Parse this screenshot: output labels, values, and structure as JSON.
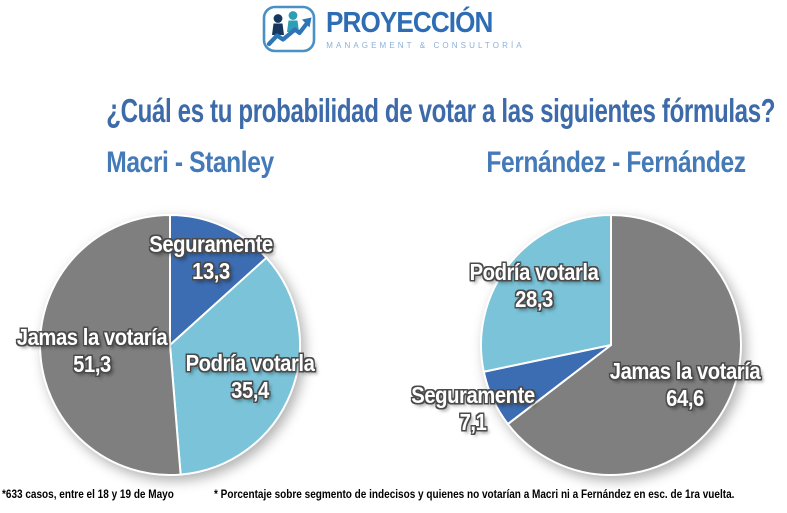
{
  "logo": {
    "brand": "PROYECCIÓN",
    "tagline": "MANAGEMENT  &  CONSULTORÍA",
    "icon": "people-growth-arrow-icon",
    "colors": {
      "brand_blue": "#2e6db4",
      "tagline_blue": "#8ab0d8",
      "person_dark": "#17375e",
      "person_teal": "#2f9db5",
      "arrow_blue": "#2e75b6",
      "border_blue": "#4a90c4"
    }
  },
  "title": "¿Cuál es tu probabilidad de votar a las siguientes fórmulas?",
  "title_color": "#3d6aa8",
  "footnotes": {
    "left": "*633 casos, entre el 18 y 19 de Mayo",
    "right": "* Porcentaje sobre segmento de indecisos y quienes no votarían a Macri ni a Fernández en esc. de 1ra vuelta."
  },
  "chart_data": [
    {
      "type": "pie",
      "title": "Macri - Stanley",
      "start_angle_deg": 0,
      "direction": "clockwise",
      "slices": [
        {
          "label": "Seguramente",
          "value": 13.3,
          "display": "13,3",
          "color": "#3c6cb2"
        },
        {
          "label": "Podría votarla",
          "value": 35.4,
          "display": "35,4",
          "color": "#7ac3d8"
        },
        {
          "label": "Jamas la votaría",
          "value": 51.3,
          "display": "51,3",
          "color": "#7f7f7f"
        }
      ]
    },
    {
      "type": "pie",
      "title": "Fernández - Fernández",
      "start_angle_deg": 0,
      "direction": "clockwise",
      "slices": [
        {
          "label": "Jamas la votaría",
          "value": 64.6,
          "display": "64,6",
          "color": "#7f7f7f"
        },
        {
          "label": "Seguramente",
          "value": 7.1,
          "display": "7,1",
          "color": "#3c6cb2"
        },
        {
          "label": "Podría votarla",
          "value": 28.3,
          "display": "28,3",
          "color": "#7ac3d8"
        }
      ]
    }
  ]
}
